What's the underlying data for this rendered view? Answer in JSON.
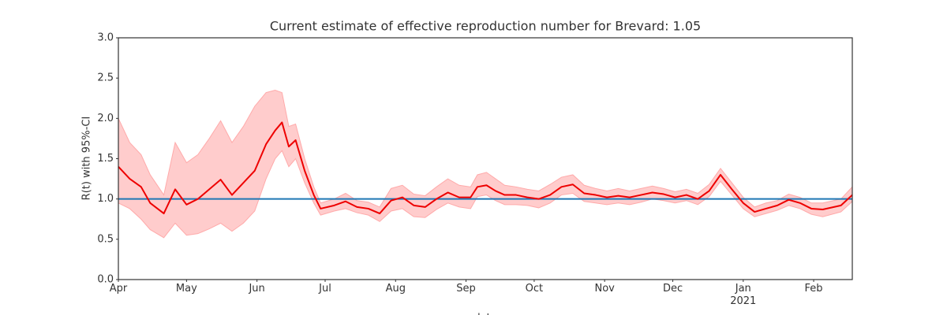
{
  "chart_data": {
    "type": "line",
    "title": "Current estimate of effective reproduction number for Brevard: 1.05",
    "xlabel": "date",
    "ylabel": "R(t) with 95%-CI",
    "x": [
      0,
      5,
      10,
      14,
      20,
      25,
      30,
      35,
      40,
      45,
      50,
      55,
      60,
      65,
      69,
      72,
      75,
      78,
      82,
      86,
      89,
      95,
      100,
      105,
      110,
      115,
      120,
      125,
      130,
      135,
      140,
      145,
      150,
      155,
      158,
      162,
      166,
      170,
      175,
      180,
      185,
      190,
      195,
      200,
      205,
      210,
      215,
      220,
      225,
      230,
      235,
      240,
      245,
      250,
      255,
      260,
      265,
      270,
      275,
      280,
      285,
      290,
      295,
      300,
      305,
      310,
      318,
      323
    ],
    "values": [
      1.4,
      1.25,
      1.15,
      0.95,
      0.82,
      1.12,
      0.93,
      1.0,
      1.12,
      1.24,
      1.05,
      1.2,
      1.35,
      1.68,
      1.85,
      1.95,
      1.65,
      1.73,
      1.35,
      1.05,
      0.88,
      0.92,
      0.97,
      0.9,
      0.88,
      0.82,
      0.98,
      1.02,
      0.92,
      0.9,
      1.0,
      1.08,
      1.02,
      1.02,
      1.15,
      1.17,
      1.1,
      1.05,
      1.05,
      1.02,
      1.0,
      1.05,
      1.15,
      1.18,
      1.07,
      1.05,
      1.02,
      1.04,
      1.02,
      1.05,
      1.08,
      1.06,
      1.02,
      1.05,
      1.0,
      1.1,
      1.3,
      1.12,
      0.95,
      0.84,
      0.88,
      0.92,
      0.99,
      0.95,
      0.88,
      0.87,
      0.92,
      1.05
    ],
    "upper": [
      2.0,
      1.7,
      1.55,
      1.3,
      1.05,
      1.7,
      1.45,
      1.55,
      1.75,
      1.97,
      1.7,
      1.9,
      2.15,
      2.32,
      2.35,
      2.32,
      1.9,
      1.93,
      1.5,
      1.15,
      0.95,
      1.0,
      1.07,
      0.98,
      0.96,
      0.9,
      1.13,
      1.17,
      1.06,
      1.04,
      1.15,
      1.25,
      1.17,
      1.15,
      1.3,
      1.33,
      1.25,
      1.17,
      1.15,
      1.12,
      1.1,
      1.18,
      1.27,
      1.3,
      1.17,
      1.13,
      1.1,
      1.13,
      1.1,
      1.13,
      1.16,
      1.13,
      1.09,
      1.12,
      1.07,
      1.18,
      1.38,
      1.2,
      1.02,
      0.9,
      0.95,
      0.98,
      1.06,
      1.02,
      0.95,
      0.95,
      1.0,
      1.15
    ],
    "lower": [
      0.95,
      0.88,
      0.75,
      0.62,
      0.52,
      0.7,
      0.55,
      0.57,
      0.63,
      0.7,
      0.6,
      0.7,
      0.85,
      1.25,
      1.5,
      1.6,
      1.4,
      1.5,
      1.2,
      0.95,
      0.8,
      0.85,
      0.88,
      0.83,
      0.8,
      0.72,
      0.85,
      0.88,
      0.78,
      0.77,
      0.87,
      0.95,
      0.9,
      0.88,
      1.03,
      1.05,
      0.98,
      0.93,
      0.93,
      0.92,
      0.89,
      0.95,
      1.05,
      1.07,
      0.97,
      0.95,
      0.93,
      0.95,
      0.93,
      0.96,
      1.0,
      0.98,
      0.95,
      0.98,
      0.93,
      1.03,
      1.22,
      1.05,
      0.88,
      0.78,
      0.82,
      0.86,
      0.92,
      0.88,
      0.81,
      0.78,
      0.84,
      0.97
    ],
    "color": "#ee0000",
    "band_color": "#ffcccc",
    "hline": {
      "value": 1,
      "color": "#1f77b4"
    },
    "xlim": [
      0,
      323
    ],
    "xticks": [
      {
        "value": 0,
        "label": "Apr"
      },
      {
        "value": 30,
        "label": "May"
      },
      {
        "value": 61,
        "label": "Jun"
      },
      {
        "value": 91,
        "label": "Jul"
      },
      {
        "value": 122,
        "label": "Aug"
      },
      {
        "value": 153,
        "label": "Sep"
      },
      {
        "value": 183,
        "label": "Oct"
      },
      {
        "value": 214,
        "label": "Nov"
      },
      {
        "value": 244,
        "label": "Dec"
      },
      {
        "value": 275,
        "label": "Jan\n2021"
      },
      {
        "value": 306,
        "label": "Feb"
      }
    ],
    "ylim": [
      0,
      3
    ],
    "yticks": [
      {
        "value": 0,
        "label": "0.0"
      },
      0.5,
      {
        "value": 1,
        "label": "1.0"
      },
      1.5,
      {
        "value": 2,
        "label": "2.0"
      },
      2.5,
      {
        "value": 3,
        "label": "3.0"
      }
    ]
  }
}
